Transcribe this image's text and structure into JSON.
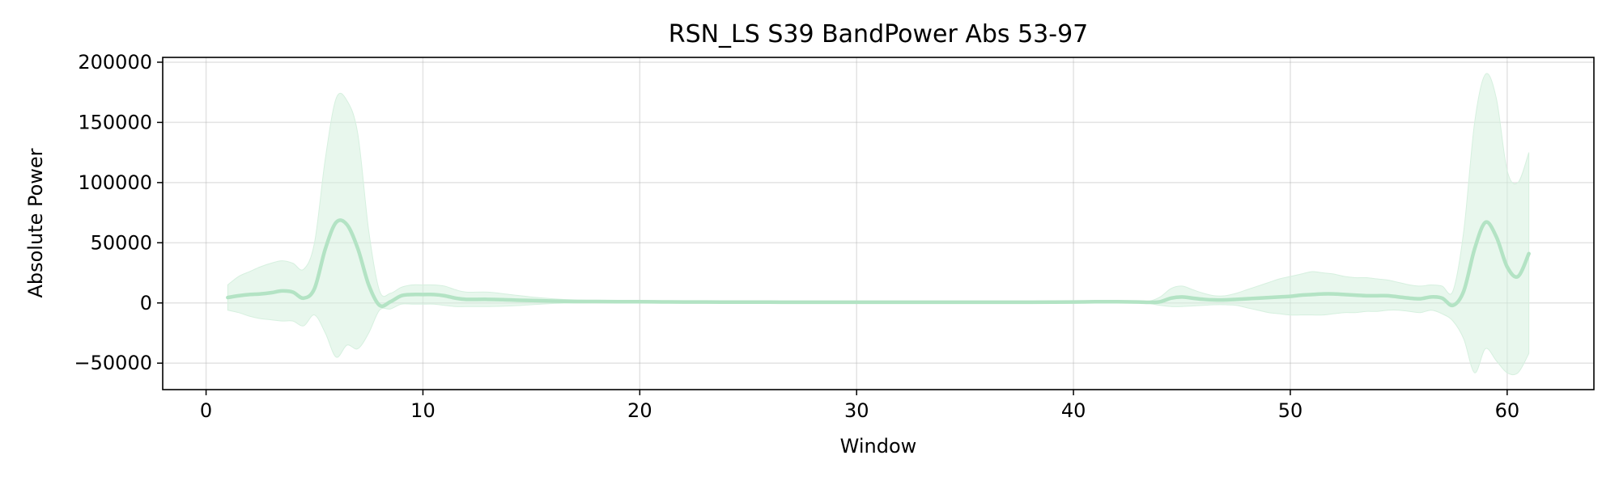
{
  "chart_data": {
    "type": "area",
    "title": "RSN_LS S39 BandPower Abs 53-97",
    "xlabel": "Window",
    "ylabel": "Absolute Power",
    "xlim": [
      -2,
      64
    ],
    "ylim": [
      -72000,
      204000
    ],
    "xticks": [
      0,
      10,
      20,
      30,
      40,
      50,
      60
    ],
    "xtick_labels": [
      "0",
      "10",
      "20",
      "30",
      "40",
      "50",
      "60"
    ],
    "yticks": [
      -50000,
      0,
      50000,
      100000,
      150000,
      200000
    ],
    "ytick_labels": [
      "−50000",
      "0",
      "50000",
      "100000",
      "150000",
      "200000"
    ],
    "grid": true,
    "line_color": "#b3e3c4",
    "band_color": "#d6f0df",
    "series": [
      {
        "x": [
          1,
          1.5,
          2,
          2.5,
          3,
          3.5,
          4,
          4.5,
          5,
          5.5,
          6,
          6.5,
          7,
          7.5,
          8,
          8.5,
          9,
          9.5,
          10,
          10.5,
          11,
          11.5,
          12,
          13,
          14,
          15,
          16,
          17,
          18,
          19,
          20,
          21,
          22,
          23,
          24,
          25,
          26,
          27,
          28,
          29,
          30,
          31,
          32,
          33,
          34,
          35,
          36,
          37,
          38,
          39,
          40,
          41,
          42,
          43,
          43.5,
          44,
          44.5,
          45,
          45.5,
          46,
          46.5,
          47,
          47.5,
          48,
          48.5,
          49,
          49.5,
          50,
          50.5,
          51,
          51.5,
          52,
          52.5,
          53,
          53.5,
          54,
          54.5,
          55,
          55.5,
          56,
          56.5,
          57,
          57.5,
          58,
          58.5,
          59,
          59.5,
          60,
          60.5,
          61
        ],
        "mean": [
          4500,
          6000,
          7000,
          7500,
          8500,
          10000,
          9000,
          4000,
          12000,
          45000,
          67000,
          65000,
          45000,
          15000,
          -2000,
          1000,
          6000,
          7000,
          7000,
          7000,
          6000,
          4000,
          3000,
          3000,
          2500,
          2000,
          1500,
          1200,
          1200,
          1000,
          1000,
          900,
          800,
          800,
          700,
          700,
          700,
          600,
          600,
          600,
          600,
          600,
          600,
          600,
          600,
          600,
          600,
          600,
          600,
          700,
          800,
          1000,
          1000,
          800,
          500,
          1000,
          4000,
          5000,
          4000,
          3000,
          2500,
          2500,
          3000,
          3500,
          4000,
          4500,
          5000,
          5500,
          6500,
          7000,
          7500,
          7500,
          7000,
          6500,
          6000,
          6000,
          6000,
          5000,
          4000,
          3500,
          5000,
          4000,
          -2000,
          10000,
          45000,
          67000,
          55000,
          30000,
          22000,
          41000
        ],
        "upper": [
          15000,
          22000,
          26000,
          30000,
          33000,
          35000,
          33000,
          28000,
          50000,
          120000,
          170000,
          168000,
          140000,
          60000,
          10000,
          8000,
          13000,
          15000,
          15000,
          15000,
          14000,
          11000,
          9000,
          9000,
          7000,
          5000,
          3500,
          2500,
          2000,
          1800,
          1600,
          1500,
          1400,
          1300,
          1200,
          1200,
          1200,
          1100,
          1100,
          1100,
          1100,
          1100,
          1100,
          1100,
          1100,
          1100,
          1100,
          1100,
          1100,
          1200,
          1400,
          1800,
          1800,
          1500,
          1500,
          5000,
          12000,
          14000,
          11000,
          8000,
          6000,
          6000,
          8000,
          11000,
          14000,
          17000,
          20000,
          22000,
          24000,
          26000,
          25000,
          24000,
          22000,
          21000,
          21000,
          20000,
          19000,
          17000,
          15000,
          14000,
          15000,
          14000,
          10000,
          60000,
          150000,
          190000,
          170000,
          110000,
          100000,
          125000
        ],
        "lower": [
          -6000,
          -8000,
          -11000,
          -13000,
          -14000,
          -15000,
          -15000,
          -19000,
          -10000,
          -25000,
          -45000,
          -35000,
          -38000,
          -25000,
          -6000,
          -5000,
          -1000,
          -1000,
          -1000,
          -1000,
          -2000,
          -3000,
          -3000,
          -3000,
          -2500,
          -1500,
          -500,
          0,
          200,
          200,
          300,
          300,
          300,
          300,
          300,
          300,
          300,
          200,
          200,
          200,
          200,
          200,
          200,
          200,
          200,
          200,
          200,
          200,
          200,
          200,
          200,
          200,
          200,
          200,
          -500,
          -2000,
          -3000,
          -3000,
          -2500,
          -2000,
          -1500,
          -1500,
          -2000,
          -4000,
          -6000,
          -8000,
          -9000,
          -10000,
          -10000,
          -10000,
          -10000,
          -9000,
          -8000,
          -8000,
          -7000,
          -7000,
          -6000,
          -6000,
          -7000,
          -8000,
          -6000,
          -9000,
          -15000,
          -30000,
          -58000,
          -38000,
          -48000,
          -58000,
          -58000,
          -42000
        ]
      }
    ]
  }
}
